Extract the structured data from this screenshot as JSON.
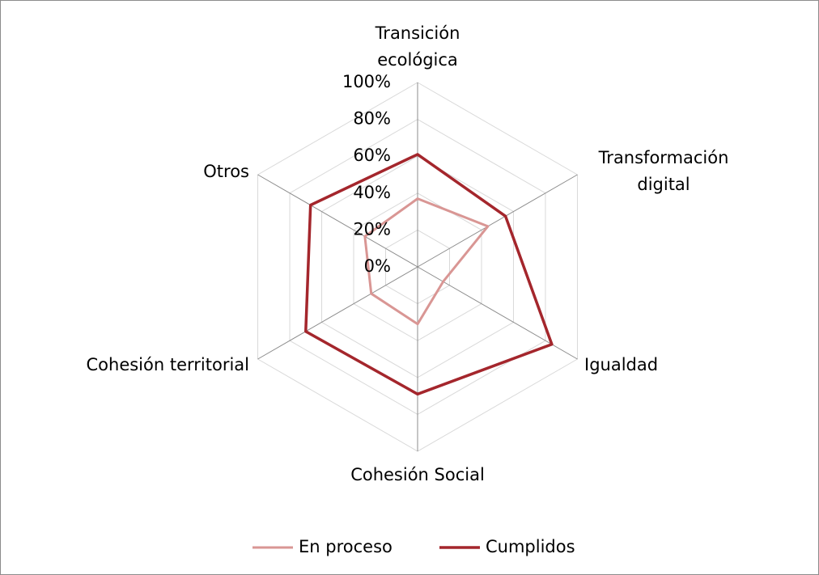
{
  "chart_data": {
    "type": "radar",
    "categories": [
      "Transición ecológica",
      "Transformación digital",
      "Igualdad",
      "Cohesión Social",
      "Cohesión territorial",
      "Otros"
    ],
    "series": [
      {
        "name": "En proceso",
        "color": "#d99694",
        "values": [
          37,
          44,
          16,
          31,
          29,
          33
        ]
      },
      {
        "name": "Cumplidos",
        "color": "#a4262c",
        "values": [
          61,
          55,
          84,
          69,
          70,
          67
        ]
      }
    ],
    "ylim": [
      0,
      100
    ],
    "yticks": [
      {
        "value": 0,
        "label": "0%"
      },
      {
        "value": 20,
        "label": "20%"
      },
      {
        "value": 40,
        "label": "40%"
      },
      {
        "value": 60,
        "label": "60%"
      },
      {
        "value": 80,
        "label": "80%"
      },
      {
        "value": 100,
        "label": "100%"
      }
    ],
    "grid": true,
    "legend": "bottom"
  }
}
